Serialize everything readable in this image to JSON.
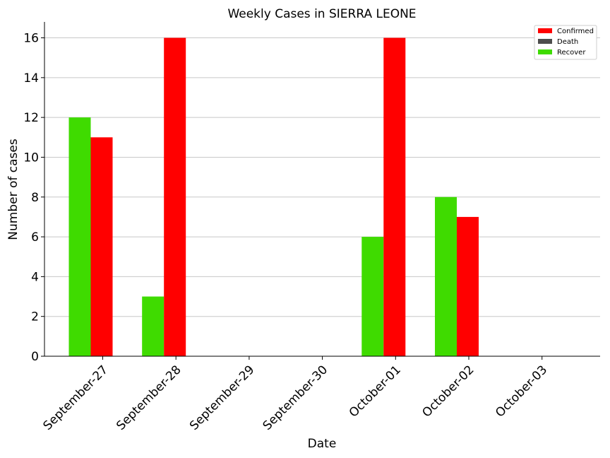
{
  "chart_data": {
    "type": "bar",
    "title": "Weekly Cases in SIERRA LEONE",
    "xlabel": "Date",
    "ylabel": "Number of cases",
    "categories": [
      "September-27",
      "September-28",
      "September-29",
      "September-30",
      "October-01",
      "October-02",
      "October-03"
    ],
    "series": [
      {
        "name": "Confirmed",
        "color": "#ff0000",
        "values": [
          11,
          16,
          0,
          0,
          16,
          7,
          0
        ]
      },
      {
        "name": "Death",
        "color": "#4d4d4d",
        "values": [
          0,
          0,
          0,
          0,
          0,
          0,
          0
        ]
      },
      {
        "name": "Recover",
        "color": "#3fdb00",
        "values": [
          12,
          3,
          0,
          0,
          6,
          8,
          0
        ]
      }
    ],
    "yticks": [
      0,
      2,
      4,
      6,
      8,
      10,
      12,
      14,
      16
    ],
    "ylim": [
      0,
      16.8
    ],
    "grid": "horizontal",
    "legend_position": "top-right"
  }
}
